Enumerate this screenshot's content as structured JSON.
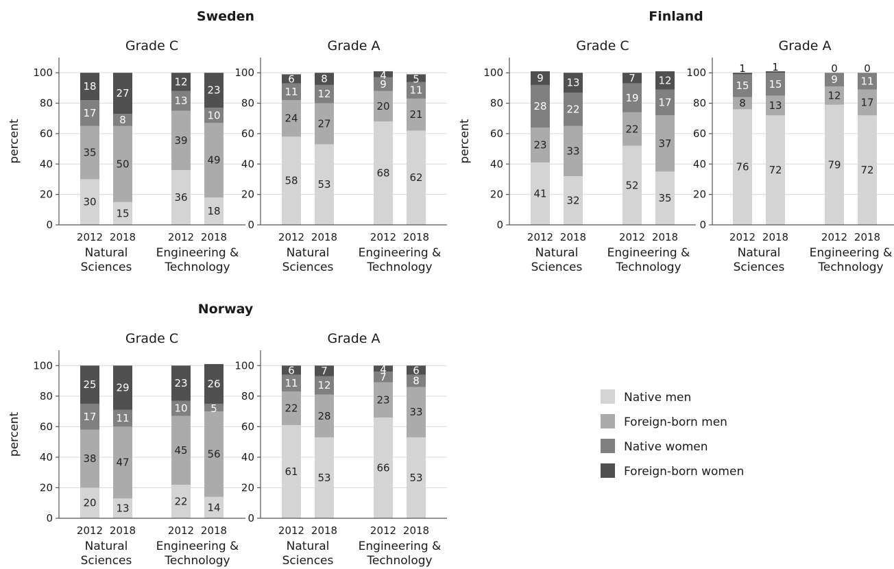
{
  "legend": [
    {
      "label": "Native men",
      "color": "#d4d4d4"
    },
    {
      "label": "Foreign-born men",
      "color": "#ababab"
    },
    {
      "label": "Native women",
      "color": "#808080"
    },
    {
      "label": "Foreign-born women",
      "color": "#505050"
    }
  ],
  "chart_data": [
    {
      "type": "bar",
      "stacked": true,
      "country": "Sweden",
      "title": "Grade C",
      "ylabel": "percent",
      "ylim": [
        0,
        110
      ],
      "yticks": [
        0,
        20,
        40,
        60,
        80,
        100
      ],
      "groups": [
        "Natural Sciences",
        "Engineering & Technology"
      ],
      "categories": [
        "2012",
        "2018",
        "2012",
        "2018"
      ],
      "series": [
        {
          "name": "Native men",
          "values": [
            30,
            15,
            36,
            18
          ]
        },
        {
          "name": "Foreign-born men",
          "values": [
            35,
            50,
            39,
            49
          ]
        },
        {
          "name": "Native women",
          "values": [
            17,
            8,
            13,
            10
          ]
        },
        {
          "name": "Foreign-born women",
          "values": [
            18,
            27,
            12,
            23
          ]
        }
      ]
    },
    {
      "type": "bar",
      "stacked": true,
      "country": "Sweden",
      "title": "Grade A",
      "ylabel": "",
      "ylim": [
        0,
        110
      ],
      "yticks": [
        0,
        20,
        40,
        60,
        80,
        100
      ],
      "groups": [
        "Natural Sciences",
        "Engineering & Technology"
      ],
      "categories": [
        "2012",
        "2018",
        "2012",
        "2018"
      ],
      "series": [
        {
          "name": "Native men",
          "values": [
            58,
            53,
            68,
            62
          ]
        },
        {
          "name": "Foreign-born men",
          "values": [
            24,
            27,
            20,
            21
          ]
        },
        {
          "name": "Native women",
          "values": [
            11,
            12,
            9,
            11
          ]
        },
        {
          "name": "Foreign-born women",
          "values": [
            6,
            8,
            4,
            5
          ]
        }
      ]
    },
    {
      "type": "bar",
      "stacked": true,
      "country": "Finland",
      "title": "Grade C",
      "ylabel": "percent",
      "ylim": [
        0,
        110
      ],
      "yticks": [
        0,
        20,
        40,
        60,
        80,
        100
      ],
      "groups": [
        "Natural Sciences",
        "Engineering & Technology"
      ],
      "categories": [
        "2012",
        "2018",
        "2012",
        "2018"
      ],
      "series": [
        {
          "name": "Native men",
          "values": [
            41,
            32,
            52,
            35
          ]
        },
        {
          "name": "Foreign-born men",
          "values": [
            23,
            33,
            22,
            37
          ]
        },
        {
          "name": "Native women",
          "values": [
            28,
            22,
            19,
            17
          ]
        },
        {
          "name": "Foreign-born women",
          "values": [
            9,
            13,
            7,
            12
          ]
        }
      ]
    },
    {
      "type": "bar",
      "stacked": true,
      "country": "Finland",
      "title": "Grade A",
      "ylabel": "",
      "ylim": [
        0,
        110
      ],
      "yticks": [
        0,
        20,
        40,
        60,
        80,
        100
      ],
      "groups": [
        "Natural Sciences",
        "Engineering & Technology"
      ],
      "categories": [
        "2012",
        "2018",
        "2012",
        "2018"
      ],
      "series": [
        {
          "name": "Native men",
          "values": [
            76,
            72,
            79,
            72
          ]
        },
        {
          "name": "Foreign-born men",
          "values": [
            8,
            13,
            12,
            17
          ]
        },
        {
          "name": "Native women",
          "values": [
            15,
            15,
            9,
            11
          ]
        },
        {
          "name": "Foreign-born women",
          "values": [
            1,
            1,
            0,
            0
          ]
        }
      ]
    },
    {
      "type": "bar",
      "stacked": true,
      "country": "Norway",
      "title": "Grade C",
      "ylabel": "percent",
      "ylim": [
        0,
        110
      ],
      "yticks": [
        0,
        20,
        40,
        60,
        80,
        100
      ],
      "groups": [
        "Natural Sciences",
        "Engineering & Technology"
      ],
      "categories": [
        "2012",
        "2018",
        "2012",
        "2018"
      ],
      "series": [
        {
          "name": "Native men",
          "values": [
            20,
            13,
            22,
            14
          ]
        },
        {
          "name": "Foreign-born men",
          "values": [
            38,
            47,
            45,
            56
          ]
        },
        {
          "name": "Native women",
          "values": [
            17,
            11,
            10,
            5
          ]
        },
        {
          "name": "Foreign-born women",
          "values": [
            25,
            29,
            23,
            26
          ]
        }
      ]
    },
    {
      "type": "bar",
      "stacked": true,
      "country": "Norway",
      "title": "Grade A",
      "ylabel": "",
      "ylim": [
        0,
        110
      ],
      "yticks": [
        0,
        20,
        40,
        60,
        80,
        100
      ],
      "groups": [
        "Natural Sciences",
        "Engineering & Technology"
      ],
      "categories": [
        "2012",
        "2018",
        "2012",
        "2018"
      ],
      "series": [
        {
          "name": "Native men",
          "values": [
            61,
            53,
            66,
            53
          ]
        },
        {
          "name": "Foreign-born men",
          "values": [
            22,
            28,
            23,
            33
          ]
        },
        {
          "name": "Native women",
          "values": [
            11,
            12,
            7,
            8
          ]
        },
        {
          "name": "Foreign-born women",
          "values": [
            6,
            7,
            4,
            6
          ]
        }
      ]
    }
  ]
}
